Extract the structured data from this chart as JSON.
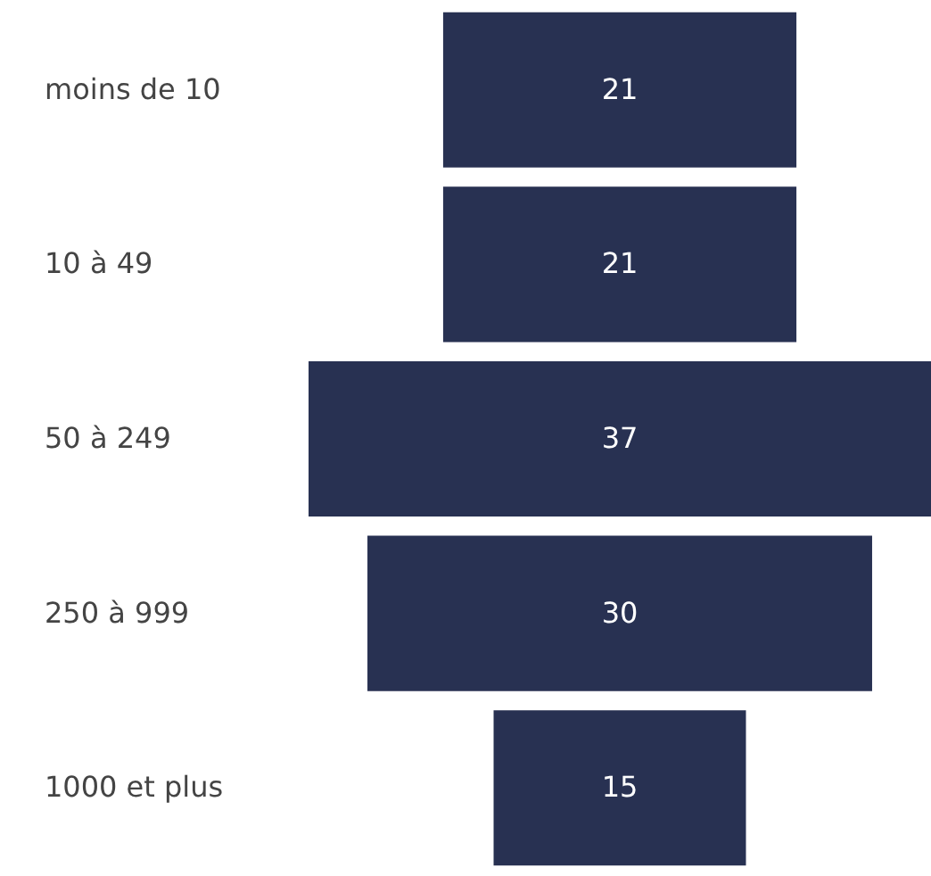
{
  "chart_data": {
    "type": "other",
    "categories": [
      "moins de 10",
      "10 à 49",
      "50 à 249",
      "250 à 999",
      "1000 et plus"
    ],
    "values": [
      21,
      21,
      37,
      30,
      15
    ],
    "color": "#283152",
    "data_labels": true
  }
}
